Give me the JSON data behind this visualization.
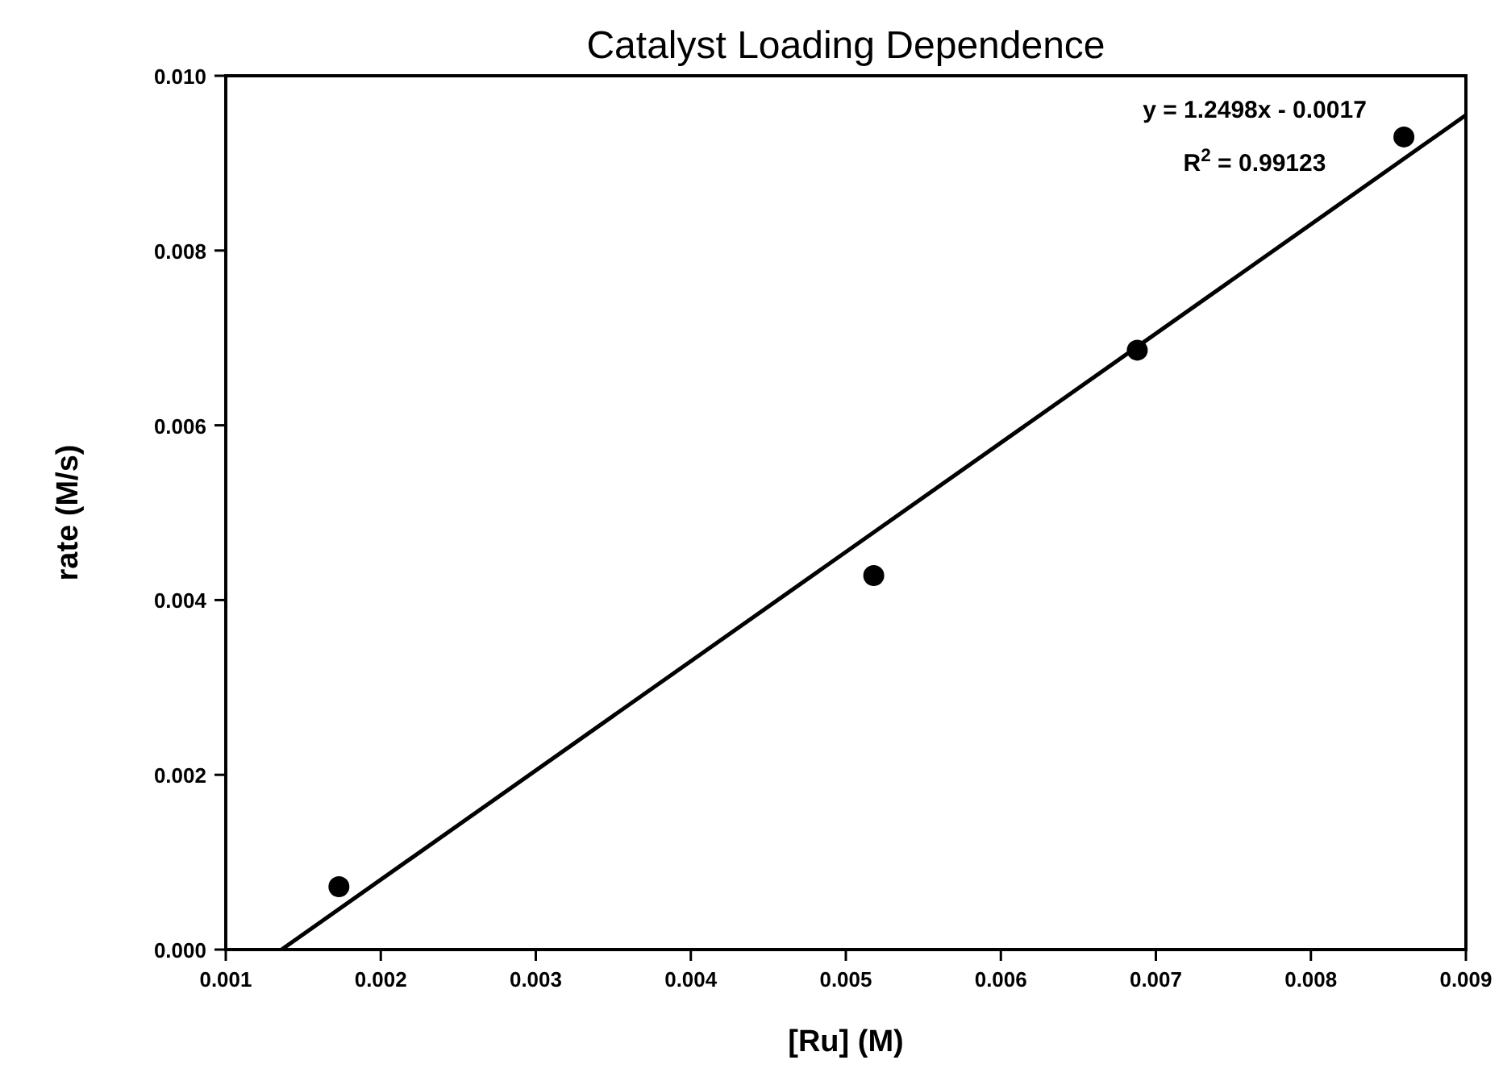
{
  "chart_data": {
    "type": "scatter",
    "title": "Catalyst Loading Dependence",
    "xlabel": "[Ru] (M)",
    "ylabel": "rate (M/s)",
    "xlim": [
      0.001,
      0.009
    ],
    "xticks": [
      0.001,
      0.002,
      0.003,
      0.004,
      0.005,
      0.006,
      0.007,
      0.008,
      0.009
    ],
    "ylim": [
      0,
      0.01
    ],
    "yticks": [
      {
        "value": 0,
        "label": "0.000"
      },
      0.002,
      0.004,
      0.006,
      0.008,
      {
        "value": 0.01,
        "label": "0.010"
      }
    ],
    "grid": false,
    "marker": "circle",
    "series": [
      {
        "color": "#000000",
        "x": [
          0.00173,
          0.00518,
          0.00688,
          0.0086
        ],
        "values": [
          0.00072,
          0.00428,
          0.00686,
          0.0093
        ]
      },
      {
        "type": "line",
        "color": "#000000",
        "line_style": "solid",
        "marker": "none",
        "x": [
          0.00136,
          0.009
        ],
        "values": [
          0,
          0.00955
        ]
      }
    ],
    "annotations": [
      "y = 1.2498x - 0.0017",
      "R$^{2}$ = 0.99123"
    ]
  }
}
